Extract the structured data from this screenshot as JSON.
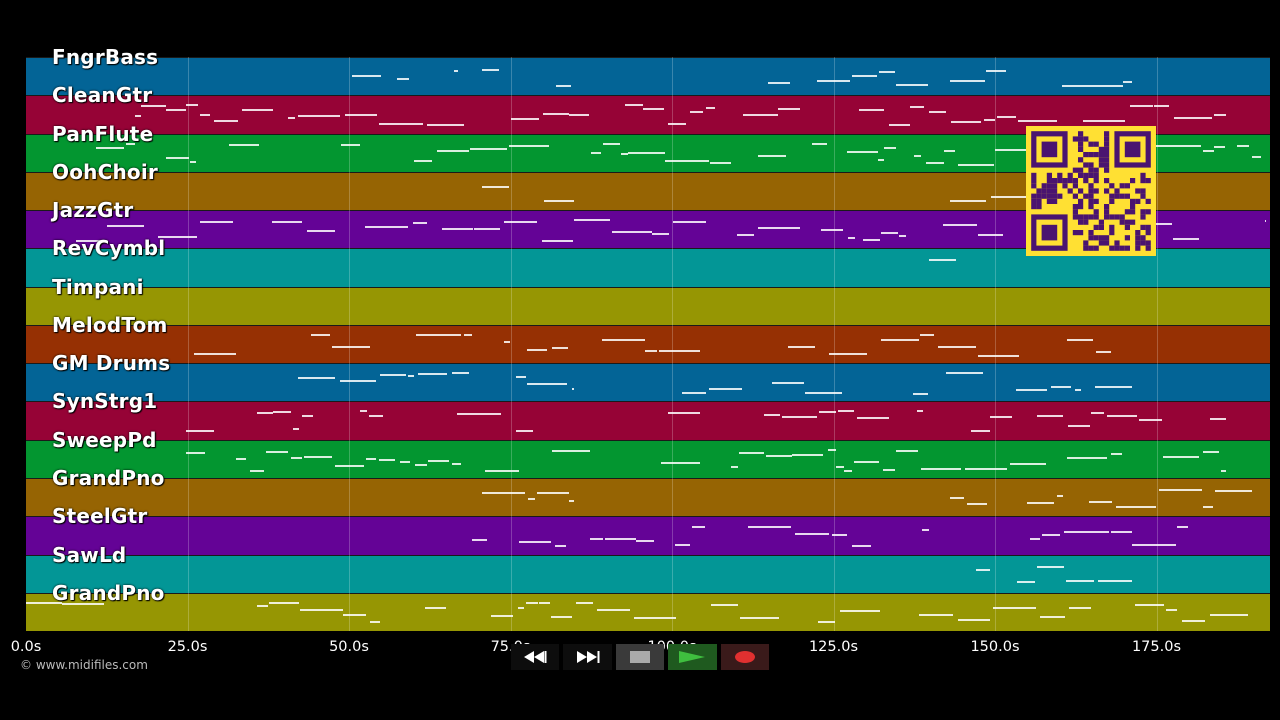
{
  "lanes": [
    {
      "label": "FngrBass",
      "color": "#036496"
    },
    {
      "label": "CleanGtr",
      "color": "#960336"
    },
    {
      "label": "PanFlute",
      "color": "#039630"
    },
    {
      "label": "OohChoir",
      "color": "#966403"
    },
    {
      "label": "JazzGtr",
      "color": "#640396"
    },
    {
      "label": "RevCymbl",
      "color": "#039696"
    },
    {
      "label": "Timpani",
      "color": "#969603"
    },
    {
      "label": "MelodTom",
      "color": "#963003"
    },
    {
      "label": "GM Drums",
      "color": "#036496"
    },
    {
      "label": "SynStrg1",
      "color": "#960336"
    },
    {
      "label": "SweepPd",
      "color": "#039630"
    },
    {
      "label": "GrandPno",
      "color": "#966403"
    },
    {
      "label": "SteelGtr",
      "color": "#640396"
    },
    {
      "label": "SawLd",
      "color": "#039696"
    },
    {
      "label": "GrandPno",
      "color": "#969603"
    }
  ],
  "timeline": {
    "ticks": [
      "0.0s",
      "25.0s",
      "50.0s",
      "75.0s",
      "100.0s",
      "125.0s",
      "150.0s",
      "175.0s"
    ],
    "tick_seconds": [
      0,
      25,
      50,
      75,
      100,
      125,
      150,
      175
    ],
    "max_seconds": 193
  },
  "copyright": "© www.midifiles.com",
  "transport": {
    "rewind_icon": "rewind-icon",
    "forward_icon": "fast-forward-icon",
    "stop_icon": "stop-icon",
    "play_icon": "play-icon",
    "record_icon": "record-icon",
    "play_color": "#3fbf3f",
    "record_color": "#e03030"
  },
  "qr_code": {
    "background": "#ffe033",
    "foreground": "#4a1470"
  }
}
